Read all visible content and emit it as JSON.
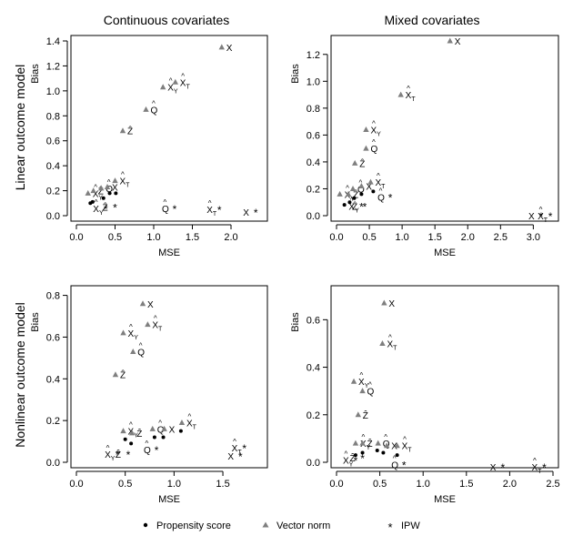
{
  "column_titles": [
    "Continuous covariates",
    "Mixed covariates"
  ],
  "row_titles": [
    "Linear outcome model",
    "Nonlinear outcome model"
  ],
  "legend": {
    "propensity": "Propensity score",
    "vector": "Vector norm",
    "ipw": "IPW"
  },
  "colors": {
    "propensity": "#000000",
    "vector": "#7f7f7f",
    "ipw": "#7f7f7f",
    "axis": "#000000"
  },
  "chart_data": [
    {
      "type": "scatter",
      "title": "Continuous covariates / Linear outcome model",
      "xlabel": "MSE",
      "ylabel": "Bias",
      "xlim": [
        0.0,
        2.4
      ],
      "ylim": [
        0.0,
        1.4
      ],
      "xticks": [
        0.0,
        0.5,
        1.0,
        1.5,
        2.0
      ],
      "yticks": [
        0.0,
        0.2,
        0.4,
        0.6,
        0.8,
        1.0,
        1.2,
        1.4
      ],
      "series": [
        {
          "name": "Vector norm",
          "marker": "triangle",
          "points": [
            {
              "x": 0.15,
              "y": 0.18,
              "label": "X̂_Y"
            },
            {
              "x": 0.22,
              "y": 0.2,
              "label": "Ẑ"
            },
            {
              "x": 0.32,
              "y": 0.22,
              "label": "Q̂"
            },
            {
              "x": 0.4,
              "y": 0.23,
              "label": "X"
            },
            {
              "x": 0.5,
              "y": 0.28,
              "label": "X̂_T"
            },
            {
              "x": 0.6,
              "y": 0.68,
              "label": "Ẑ"
            },
            {
              "x": 0.9,
              "y": 0.85,
              "label": "Q̂"
            },
            {
              "x": 1.12,
              "y": 1.03,
              "label": "X̂_Y"
            },
            {
              "x": 1.28,
              "y": 1.07,
              "label": "X̂_T"
            },
            {
              "x": 1.88,
              "y": 1.35,
              "label": "X"
            }
          ]
        },
        {
          "name": "Propensity score",
          "marker": "dot",
          "points": [
            {
              "x": 0.18,
              "y": 0.1
            },
            {
              "x": 0.21,
              "y": 0.11
            },
            {
              "x": 0.35,
              "y": 0.14
            },
            {
              "x": 0.43,
              "y": 0.18
            },
            {
              "x": 0.51,
              "y": 0.18
            }
          ]
        },
        {
          "name": "IPW",
          "marker": "star",
          "points": [
            {
              "x": 0.38,
              "y": 0.06,
              "label": "X̂_Y"
            },
            {
              "x": 0.5,
              "y": 0.07,
              "label": "Ẑ"
            },
            {
              "x": 1.27,
              "y": 0.06,
              "label": "Q̂"
            },
            {
              "x": 1.85,
              "y": 0.05,
              "label": "X̂_T"
            },
            {
              "x": 2.32,
              "y": 0.03,
              "label": "X"
            }
          ]
        }
      ]
    },
    {
      "type": "scatter",
      "title": "Mixed covariates / Linear outcome model",
      "xlabel": "MSE",
      "ylabel": "Bias",
      "xlim": [
        0.0,
        3.3
      ],
      "ylim": [
        0.0,
        1.3
      ],
      "xticks": [
        0.0,
        0.5,
        1.0,
        1.5,
        2.0,
        2.5,
        3.0
      ],
      "yticks": [
        0.0,
        0.2,
        0.4,
        0.6,
        0.8,
        1.0,
        1.2
      ],
      "series": [
        {
          "name": "Vector norm",
          "marker": "triangle",
          "points": [
            {
              "x": 0.05,
              "y": 0.16,
              "label": "X̂_Y"
            },
            {
              "x": 0.18,
              "y": 0.16,
              "label": "Ẑ"
            },
            {
              "x": 0.25,
              "y": 0.2,
              "label": "Q̂"
            },
            {
              "x": 0.38,
              "y": 0.22,
              "label": "X"
            },
            {
              "x": 0.52,
              "y": 0.25,
              "label": "X̂_T"
            },
            {
              "x": 0.28,
              "y": 0.39,
              "label": "Ẑ"
            },
            {
              "x": 0.45,
              "y": 0.5,
              "label": "Q̂"
            },
            {
              "x": 0.45,
              "y": 0.64,
              "label": "X̂_Y"
            },
            {
              "x": 0.98,
              "y": 0.9,
              "label": "X̂_T"
            },
            {
              "x": 1.73,
              "y": 1.3,
              "label": "X"
            }
          ]
        },
        {
          "name": "Propensity score",
          "marker": "dot",
          "points": [
            {
              "x": 0.12,
              "y": 0.08
            },
            {
              "x": 0.2,
              "y": 0.1
            },
            {
              "x": 0.27,
              "y": 0.13
            },
            {
              "x": 0.38,
              "y": 0.16
            },
            {
              "x": 0.56,
              "y": 0.18
            }
          ]
        },
        {
          "name": "IPW",
          "marker": "star",
          "points": [
            {
              "x": 0.38,
              "y": 0.07,
              "label": "X̂_Y"
            },
            {
              "x": 0.43,
              "y": 0.07,
              "label": "Ẑ"
            },
            {
              "x": 0.82,
              "y": 0.14,
              "label": "Q̂"
            },
            {
              "x": 3.12,
              "y": 0.0,
              "label": "X"
            },
            {
              "x": 3.26,
              "y": 0.0,
              "label": "X̂_T"
            }
          ]
        }
      ]
    },
    {
      "type": "scatter",
      "title": "Continuous covariates / Nonlinear outcome model",
      "xlabel": "MSE",
      "ylabel": "Bias",
      "xlim": [
        0.0,
        1.9
      ],
      "ylim": [
        0.0,
        0.82
      ],
      "xticks": [
        0.0,
        0.5,
        1.0,
        1.5
      ],
      "yticks": [
        0.0,
        0.2,
        0.4,
        0.6,
        0.8
      ],
      "series": [
        {
          "name": "Vector norm",
          "marker": "triangle",
          "points": [
            {
              "x": 0.4,
              "y": 0.42,
              "label": "Ẑ"
            },
            {
              "x": 0.48,
              "y": 0.62,
              "label": "X̂_Y"
            },
            {
              "x": 0.58,
              "y": 0.53,
              "label": "Q̂"
            },
            {
              "x": 0.68,
              "y": 0.76,
              "label": "X"
            },
            {
              "x": 0.73,
              "y": 0.66,
              "label": "X̂_T"
            },
            {
              "x": 0.48,
              "y": 0.15,
              "label": "X̂_Y"
            },
            {
              "x": 0.57,
              "y": 0.14,
              "label": "Ẑ"
            },
            {
              "x": 0.78,
              "y": 0.16,
              "label": "Q̂"
            },
            {
              "x": 0.9,
              "y": 0.16,
              "label": "X"
            },
            {
              "x": 1.08,
              "y": 0.19,
              "label": "X̂_T"
            }
          ]
        },
        {
          "name": "Propensity score",
          "marker": "dot",
          "points": [
            {
              "x": 0.5,
              "y": 0.11
            },
            {
              "x": 0.56,
              "y": 0.09
            },
            {
              "x": 0.8,
              "y": 0.12
            },
            {
              "x": 0.89,
              "y": 0.12
            },
            {
              "x": 1.07,
              "y": 0.15
            }
          ]
        },
        {
          "name": "IPW",
          "marker": "star",
          "points": [
            {
              "x": 0.42,
              "y": 0.04,
              "label": "X̂_Y"
            },
            {
              "x": 0.53,
              "y": 0.04,
              "label": "Ẑ"
            },
            {
              "x": 0.82,
              "y": 0.06,
              "label": "Q̂"
            },
            {
              "x": 1.68,
              "y": 0.03,
              "label": "X"
            },
            {
              "x": 1.72,
              "y": 0.07,
              "label": "X̂_T"
            }
          ]
        }
      ]
    },
    {
      "type": "scatter",
      "title": "Mixed covariates / Nonlinear outcome model",
      "xlabel": "MSE",
      "ylabel": "Bias",
      "xlim": [
        0.0,
        2.5
      ],
      "ylim": [
        0.0,
        0.72
      ],
      "xticks": [
        0.0,
        0.5,
        1.0,
        1.5,
        2.0,
        2.5
      ],
      "yticks": [
        0.0,
        0.2,
        0.4,
        0.6
      ],
      "series": [
        {
          "name": "Vector norm",
          "marker": "triangle",
          "points": [
            {
              "x": 0.2,
              "y": 0.34,
              "label": "X̂_Y"
            },
            {
              "x": 0.3,
              "y": 0.3,
              "label": "Q̂"
            },
            {
              "x": 0.25,
              "y": 0.2,
              "label": "Ẑ"
            },
            {
              "x": 0.53,
              "y": 0.5,
              "label": "X̂_T"
            },
            {
              "x": 0.55,
              "y": 0.67,
              "label": "X"
            },
            {
              "x": 0.22,
              "y": 0.08,
              "label": "X̂_Y"
            },
            {
              "x": 0.3,
              "y": 0.08,
              "label": "Ẑ"
            },
            {
              "x": 0.48,
              "y": 0.08,
              "label": "Q̂"
            },
            {
              "x": 0.58,
              "y": 0.07,
              "label": "X"
            },
            {
              "x": 0.7,
              "y": 0.07,
              "label": "X̂_T"
            }
          ]
        },
        {
          "name": "Propensity score",
          "marker": "dot",
          "points": [
            {
              "x": 0.22,
              "y": 0.03
            },
            {
              "x": 0.3,
              "y": 0.04
            },
            {
              "x": 0.47,
              "y": 0.05
            },
            {
              "x": 0.54,
              "y": 0.04
            },
            {
              "x": 0.7,
              "y": 0.03
            }
          ]
        },
        {
          "name": "IPW",
          "marker": "star",
          "points": [
            {
              "x": 0.22,
              "y": 0.01,
              "label": "X̂_Y"
            },
            {
              "x": 0.3,
              "y": 0.02,
              "label": "Ẑ"
            },
            {
              "x": 0.78,
              "y": -0.01,
              "label": "Q̂"
            },
            {
              "x": 1.92,
              "y": -0.02,
              "label": "X"
            },
            {
              "x": 2.4,
              "y": -0.02,
              "label": "X̂_T"
            }
          ]
        }
      ]
    }
  ]
}
